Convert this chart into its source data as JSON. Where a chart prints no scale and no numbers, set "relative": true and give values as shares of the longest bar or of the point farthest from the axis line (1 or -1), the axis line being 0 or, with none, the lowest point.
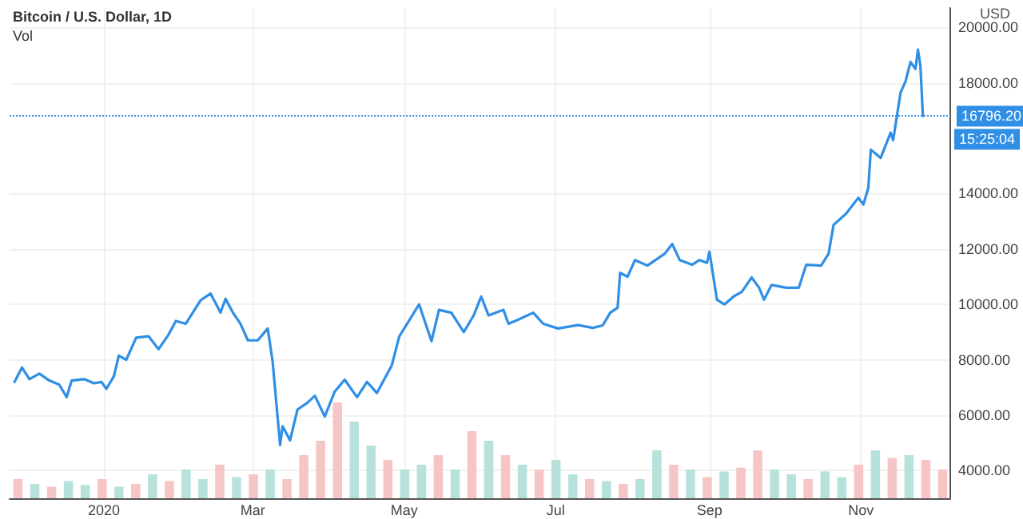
{
  "chart_data": [
    {
      "type": "line",
      "title": "Bitcoin / U.S. Dollar, 1D",
      "ylabel": "USD",
      "annotations": [
        "Vol",
        "15:25:04"
      ],
      "x": [
        "2019-11-26",
        "2019-11-29",
        "2019-12-02",
        "2019-12-06",
        "2019-12-10",
        "2019-12-14",
        "2019-12-17",
        "2019-12-19",
        "2019-12-24",
        "2019-12-28",
        "2019-12-31",
        "2020-01-02",
        "2020-01-05",
        "2020-01-07",
        "2020-01-10",
        "2020-01-14",
        "2020-01-19",
        "2020-01-23",
        "2020-01-27",
        "2020-01-30",
        "2020-02-03",
        "2020-02-09",
        "2020-02-13",
        "2020-02-17",
        "2020-02-19",
        "2020-02-22",
        "2020-02-25",
        "2020-02-28",
        "2020-03-03",
        "2020-03-07",
        "2020-03-09",
        "2020-03-12",
        "2020-03-13",
        "2020-03-16",
        "2020-03-19",
        "2020-03-23",
        "2020-03-26",
        "2020-03-30",
        "2020-04-03",
        "2020-04-07",
        "2020-04-12",
        "2020-04-16",
        "2020-04-20",
        "2020-04-26",
        "2020-04-29",
        "2020-05-07",
        "2020-05-12",
        "2020-05-15",
        "2020-05-20",
        "2020-05-25",
        "2020-05-29",
        "2020-06-01",
        "2020-06-04",
        "2020-06-10",
        "2020-06-12",
        "2020-06-16",
        "2020-06-22",
        "2020-06-26",
        "2020-07-02",
        "2020-07-10",
        "2020-07-16",
        "2020-07-20",
        "2020-07-23",
        "2020-07-26",
        "2020-07-27",
        "2020-07-30",
        "2020-08-02",
        "2020-08-07",
        "2020-08-14",
        "2020-08-17",
        "2020-08-20",
        "2020-08-25",
        "2020-08-28",
        "2020-08-31",
        "2020-09-01",
        "2020-09-04",
        "2020-09-07",
        "2020-09-11",
        "2020-09-14",
        "2020-09-18",
        "2020-09-21",
        "2020-09-23",
        "2020-09-26",
        "2020-10-02",
        "2020-10-07",
        "2020-10-10",
        "2020-10-16",
        "2020-10-19",
        "2020-10-21",
        "2020-10-26",
        "2020-10-31",
        "2020-11-02",
        "2020-11-04",
        "2020-11-05",
        "2020-11-09",
        "2020-11-13",
        "2020-11-14",
        "2020-11-17",
        "2020-11-19",
        "2020-11-21",
        "2020-11-23",
        "2020-11-24",
        "2020-11-25",
        "2020-11-26"
      ],
      "series": [
        {
          "color": "#2f8fe6",
          "values": [
            7200,
            7720,
            7300,
            7500,
            7250,
            7100,
            6650,
            7250,
            7300,
            7150,
            7200,
            6950,
            7400,
            8150,
            8000,
            8800,
            8850,
            8380,
            8900,
            9400,
            9300,
            10150,
            10390,
            9700,
            10200,
            9700,
            9300,
            8700,
            8700,
            9130,
            7920,
            4920,
            5600,
            5090,
            6200,
            6450,
            6700,
            5950,
            6850,
            7280,
            6650,
            7200,
            6800,
            7800,
            8840,
            10000,
            8670,
            9800,
            9700,
            9000,
            9600,
            10280,
            9600,
            9800,
            9300,
            9450,
            9700,
            9300,
            9130,
            9250,
            9150,
            9240,
            9700,
            9880,
            11140,
            11000,
            11600,
            11400,
            11830,
            12180,
            11600,
            11430,
            11600,
            11500,
            11900,
            10170,
            10000,
            10300,
            10450,
            10970,
            10600,
            10170,
            10700,
            10600,
            10600,
            11430,
            11400,
            11830,
            12870,
            13270,
            13850,
            13600,
            14200,
            15580,
            15290,
            16200,
            15920,
            17650,
            18050,
            18750,
            18500,
            19200,
            18600,
            16796.2
          ]
        }
      ],
      "xlim": [
        "2019-11-24",
        "2020-12-07"
      ],
      "xticks": [
        {
          "value": "2020-01-01",
          "label": "2020"
        },
        {
          "value": "2020-03-01",
          "label": "Mar"
        },
        {
          "value": "2020-05-01",
          "label": "May"
        },
        {
          "value": "2020-07-01",
          "label": "Jul"
        },
        {
          "value": "2020-09-01",
          "label": "Sep"
        },
        {
          "value": "2020-11-01",
          "label": "Nov"
        }
      ],
      "ylim": [
        3000,
        20700
      ],
      "yticks": [
        {
          "value": 4000,
          "label": "4000.00"
        },
        {
          "value": 6000,
          "label": "6000.00"
        },
        {
          "value": 8000,
          "label": "8000.00"
        },
        {
          "value": 10000,
          "label": "10000.00"
        },
        {
          "value": 12000,
          "label": "12000.00"
        },
        {
          "value": 14000,
          "label": "14000.00"
        },
        {
          "value": 18000,
          "label": "18000.00"
        },
        {
          "value": 20000,
          "label": "20000.00"
        }
      ],
      "ref_lines": [
        {
          "axis": "y",
          "value": 16796.2,
          "label": "16796.20",
          "color": "#2f8fe6",
          "line_style": "dotted"
        }
      ],
      "grid": true,
      "marker": "none",
      "line_style": "solid"
    },
    {
      "type": "bar",
      "relative": true,
      "categories": [
        null,
        null,
        null,
        null,
        null,
        null,
        null,
        null,
        null,
        null,
        null,
        null,
        null,
        null,
        null,
        null,
        null,
        null,
        null,
        null,
        null,
        null,
        null,
        null,
        null,
        null,
        null,
        null,
        null,
        null,
        null,
        null,
        null,
        null,
        null,
        null,
        null,
        null,
        null,
        null,
        null,
        null,
        null,
        null,
        null,
        null,
        null,
        null,
        null,
        null,
        null,
        null,
        null,
        null,
        null,
        null
      ],
      "values": [
        0.2,
        0.15,
        0.12,
        0.18,
        0.14,
        0.2,
        0.12,
        0.15,
        0.25,
        0.18,
        0.3,
        0.2,
        0.35,
        0.22,
        0.25,
        0.3,
        0.2,
        0.45,
        0.6,
        1,
        0.8,
        0.55,
        0.4,
        0.3,
        0.35,
        0.45,
        0.3,
        0.7,
        0.6,
        0.45,
        0.35,
        0.3,
        0.4,
        0.25,
        0.2,
        0.18,
        0.15,
        0.2,
        0.5,
        0.35,
        0.3,
        0.22,
        0.28,
        0.32,
        0.5,
        0.3,
        0.25,
        0.2,
        0.28,
        0.22,
        0.35,
        0.5,
        0.42,
        0.45,
        0.4,
        0.3
      ],
      "colors": [
        "#f6c6c6",
        "#b7e2dc",
        "#f6c6c6",
        "#b7e2dc",
        "#b7e2dc",
        "#f6c6c6",
        "#b7e2dc",
        "#f6c6c6",
        "#b7e2dc",
        "#f6c6c6",
        "#b7e2dc",
        "#b7e2dc",
        "#f6c6c6",
        "#b7e2dc",
        "#f6c6c6",
        "#b7e2dc",
        "#f6c6c6",
        "#f6c6c6",
        "#f6c6c6",
        "#f6c6c6",
        "#b7e2dc",
        "#b7e2dc",
        "#f6c6c6",
        "#b7e2dc",
        "#b7e2dc",
        "#f6c6c6",
        "#b7e2dc",
        "#f6c6c6",
        "#b7e2dc",
        "#f6c6c6",
        "#b7e2dc",
        "#f6c6c6",
        "#b7e2dc",
        "#b7e2dc",
        "#f6c6c6",
        "#b7e2dc",
        "#f6c6c6",
        "#b7e2dc",
        "#b7e2dc",
        "#f6c6c6",
        "#b7e2dc",
        "#f6c6c6",
        "#b7e2dc",
        "#f6c6c6",
        "#f6c6c6",
        "#b7e2dc",
        "#b7e2dc",
        "#f6c6c6",
        "#b7e2dc",
        "#b7e2dc",
        "#f6c6c6",
        "#b7e2dc",
        "#f6c6c6",
        "#b7e2dc",
        "#f6c6c6",
        "#f6c6c6"
      ]
    }
  ]
}
